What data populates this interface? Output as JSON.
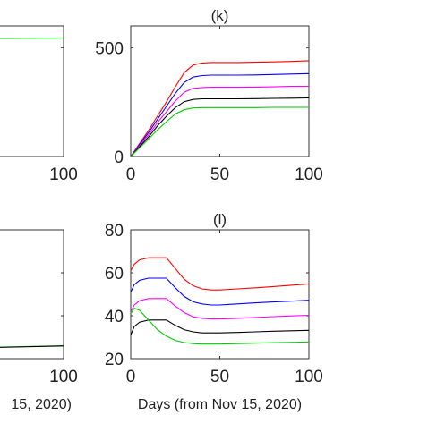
{
  "chart_data": [
    {
      "panel": "left-top",
      "type": "line",
      "title": "",
      "xlabel": "",
      "ylabel": "",
      "xlim": [
        0,
        100
      ],
      "x_ticks": [
        "100"
      ],
      "y_ticks": [],
      "series": [
        {
          "color": "#00cc00",
          "x": [
            0,
            50,
            100
          ],
          "y": [
            540,
            542,
            544
          ]
        }
      ]
    },
    {
      "panel": "k",
      "type": "line",
      "title": "(k)",
      "xlabel": "",
      "ylabel": "",
      "xlim": [
        0,
        100
      ],
      "ylim": [
        0,
        600
      ],
      "x_ticks": [
        "0",
        "50",
        "100"
      ],
      "y_ticks": [
        "0",
        "500"
      ],
      "series": [
        {
          "color": "#ff0000",
          "x": [
            0,
            5,
            10,
            15,
            20,
            25,
            30,
            35,
            40,
            45,
            50,
            60,
            70,
            80,
            90,
            100
          ],
          "y": [
            0,
            60,
            120,
            185,
            250,
            320,
            385,
            420,
            430,
            432,
            432,
            432,
            433,
            435,
            437,
            440
          ]
        },
        {
          "color": "#0000ff",
          "x": [
            0,
            5,
            10,
            15,
            20,
            25,
            30,
            35,
            40,
            45,
            50,
            60,
            70,
            80,
            90,
            100
          ],
          "y": [
            0,
            55,
            110,
            170,
            230,
            290,
            340,
            365,
            372,
            374,
            374,
            374,
            375,
            377,
            379,
            381
          ]
        },
        {
          "color": "#ff00ff",
          "x": [
            0,
            5,
            10,
            15,
            20,
            25,
            30,
            35,
            40,
            45,
            50,
            60,
            70,
            80,
            90,
            100
          ],
          "y": [
            0,
            50,
            100,
            155,
            205,
            255,
            295,
            313,
            317,
            318,
            318,
            318,
            319,
            320,
            322,
            323
          ]
        },
        {
          "color": "#000000",
          "x": [
            0,
            5,
            10,
            15,
            20,
            25,
            30,
            35,
            40,
            45,
            50,
            60,
            70,
            80,
            90,
            100
          ],
          "y": [
            0,
            45,
            90,
            140,
            185,
            225,
            252,
            262,
            265,
            265,
            265,
            265,
            266,
            267,
            268,
            269
          ]
        },
        {
          "color": "#00cc00",
          "x": [
            0,
            5,
            10,
            15,
            20,
            25,
            30,
            35,
            40,
            45,
            50,
            60,
            70,
            80,
            90,
            100
          ],
          "y": [
            0,
            40,
            80,
            122,
            160,
            195,
            215,
            223,
            225,
            225,
            225,
            225,
            225,
            226,
            226,
            226
          ]
        }
      ]
    },
    {
      "panel": "left-bottom",
      "type": "line",
      "title": "",
      "xlabel": "15, 2020)",
      "ylabel": "",
      "xlim": [
        0,
        100
      ],
      "x_ticks": [
        "100"
      ],
      "y_ticks": [],
      "series": [
        {
          "color": "#00cc00",
          "x": [
            0,
            50,
            100
          ],
          "y": [
            24.5,
            25.2,
            26
          ]
        },
        {
          "color": "#000000",
          "x": [
            0,
            50,
            100
          ],
          "y": [
            24.4,
            25.1,
            25.9
          ]
        }
      ]
    },
    {
      "panel": "l",
      "type": "line",
      "title": "(l)",
      "xlabel": "Days (from Nov 15, 2020)",
      "ylabel": "",
      "xlim": [
        0,
        100
      ],
      "ylim": [
        20,
        80
      ],
      "x_ticks": [
        "0",
        "50",
        "100"
      ],
      "y_ticks": [
        "20",
        "40",
        "60",
        "80"
      ],
      "series": [
        {
          "color": "#ff0000",
          "x": [
            0,
            2,
            5,
            10,
            15,
            20,
            25,
            30,
            35,
            40,
            45,
            50,
            60,
            70,
            80,
            90,
            100
          ],
          "y": [
            61,
            64,
            66,
            67,
            67,
            67,
            62,
            57,
            54,
            52.5,
            52,
            52,
            52.5,
            53,
            53.6,
            54.2,
            54.8
          ]
        },
        {
          "color": "#0000ff",
          "x": [
            0,
            2,
            5,
            10,
            15,
            20,
            25,
            30,
            35,
            40,
            45,
            50,
            60,
            70,
            80,
            90,
            100
          ],
          "y": [
            51,
            54.5,
            56.5,
            57.5,
            57.5,
            57.5,
            53,
            49,
            46.5,
            45.5,
            45,
            45,
            45.5,
            46,
            46.4,
            46.8,
            47.2
          ]
        },
        {
          "color": "#ff00ff",
          "x": [
            0,
            2,
            5,
            10,
            15,
            20,
            25,
            30,
            35,
            40,
            45,
            50,
            60,
            70,
            80,
            90,
            100
          ],
          "y": [
            42,
            45,
            47,
            48,
            48,
            48,
            44.5,
            41.5,
            39.5,
            38.8,
            38.5,
            38.5,
            38.8,
            39.2,
            39.6,
            39.9,
            40.2
          ]
        },
        {
          "color": "#000000",
          "x": [
            0,
            2,
            5,
            10,
            15,
            20,
            25,
            30,
            35,
            40,
            45,
            50,
            60,
            70,
            80,
            90,
            100
          ],
          "y": [
            31,
            35,
            37,
            38,
            38,
            38,
            35.5,
            33.5,
            32.5,
            32,
            32,
            32,
            32.2,
            32.5,
            32.8,
            33,
            33.2
          ]
        },
        {
          "color": "#00cc00",
          "x": [
            0,
            2,
            5,
            10,
            15,
            20,
            25,
            30,
            35,
            40,
            45,
            50,
            60,
            70,
            80,
            90,
            100
          ],
          "y": [
            41,
            43.5,
            42.5,
            38,
            33.5,
            30.5,
            28.5,
            27.5,
            27,
            26.8,
            26.8,
            26.8,
            27,
            27.2,
            27.4,
            27.6,
            27.8
          ]
        }
      ]
    }
  ]
}
